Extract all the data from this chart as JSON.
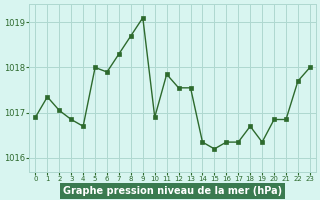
{
  "x": [
    0,
    1,
    2,
    3,
    4,
    5,
    6,
    7,
    8,
    9,
    10,
    11,
    12,
    13,
    14,
    15,
    16,
    17,
    18,
    19,
    20,
    21,
    22,
    23
  ],
  "y": [
    1016.9,
    1017.35,
    1017.05,
    1016.85,
    1016.7,
    1018.0,
    1017.9,
    1018.3,
    1018.7,
    1019.1,
    1016.9,
    1017.85,
    1017.55,
    1017.55,
    1016.35,
    1016.2,
    1016.35,
    1016.35,
    1016.7,
    1016.35,
    1016.85,
    1016.85,
    1017.7,
    1018.0
  ],
  "line_color": "#2d6a2d",
  "marker_color": "#2d6a2d",
  "bg_color": "#d8f5f0",
  "grid_color": "#aed8d0",
  "xlabel": "Graphe pression niveau de la mer (hPa)",
  "xlabel_color": "white",
  "xlabel_bg": "#3a7a50",
  "tick_color": "#2d6a2d",
  "ylim": [
    1015.7,
    1019.4
  ],
  "yticks": [
    1016,
    1017,
    1018,
    1019
  ],
  "xtick_labels": [
    "0",
    "1",
    "2",
    "3",
    "4",
    "5",
    "6",
    "7",
    "8",
    "9",
    "10",
    "11",
    "12",
    "13",
    "14",
    "15",
    "16",
    "17",
    "18",
    "19",
    "20",
    "21",
    "22",
    "23"
  ]
}
